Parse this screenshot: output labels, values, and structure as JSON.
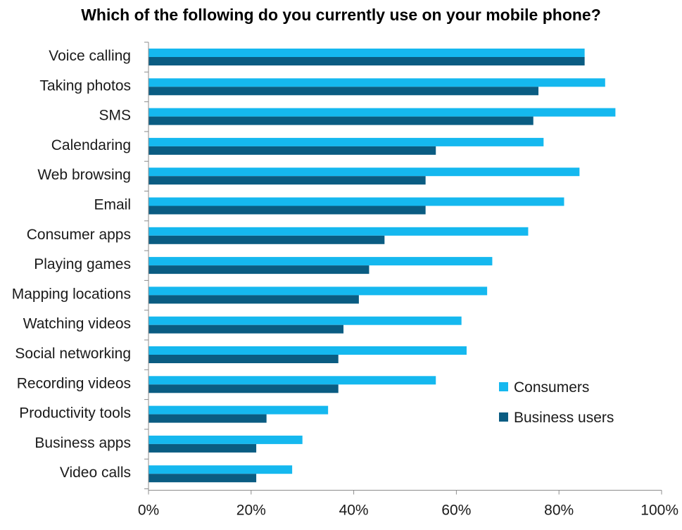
{
  "chart_data": {
    "type": "bar",
    "orientation": "horizontal",
    "title": "Which of the following do you currently use on your mobile phone?",
    "categories": [
      "Voice calling",
      "Taking photos",
      "SMS",
      "Calendaring",
      "Web browsing",
      "Email",
      "Consumer apps",
      "Playing games",
      "Mapping locations",
      "Watching videos",
      "Social networking",
      "Recording videos",
      "Productivity tools",
      "Business apps",
      "Video calls"
    ],
    "series": [
      {
        "name": "Consumers",
        "color": "#15B8EF",
        "values": [
          85,
          89,
          91,
          77,
          84,
          81,
          74,
          67,
          66,
          61,
          62,
          56,
          35,
          30,
          28
        ]
      },
      {
        "name": "Business users",
        "color": "#0A5C82",
        "values": [
          85,
          76,
          75,
          56,
          54,
          54,
          46,
          43,
          41,
          38,
          37,
          37,
          23,
          21,
          21
        ]
      }
    ],
    "xlim": [
      0,
      100
    ],
    "xticks": [
      0,
      20,
      40,
      60,
      80,
      100
    ],
    "xtick_labels": [
      "0%",
      "20%",
      "40%",
      "60%",
      "80%",
      "100%"
    ],
    "xlabel": "",
    "ylabel": "",
    "grid": false,
    "legend": {
      "position": "right"
    }
  }
}
